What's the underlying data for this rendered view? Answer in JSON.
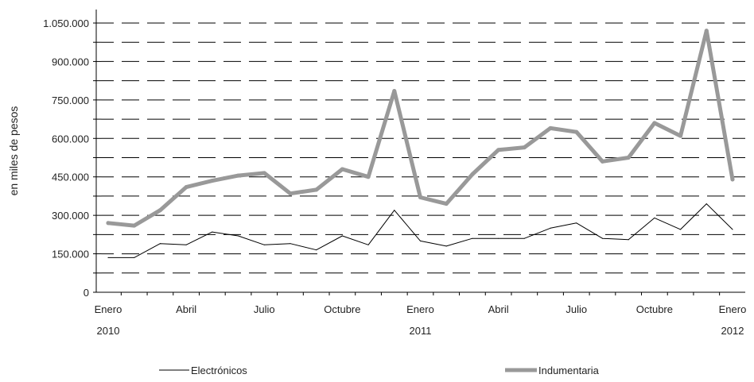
{
  "chart_data": {
    "type": "line",
    "ylabel": "en miles de pesos",
    "ylim": [
      0,
      1050000
    ],
    "yticks": [
      0,
      150000,
      300000,
      450000,
      600000,
      750000,
      900000,
      1050000
    ],
    "ytick_labels": [
      "0",
      "150.000",
      "300.000",
      "450.000",
      "600.000",
      "750.000",
      "900.000",
      "1.050.000"
    ],
    "grid": "horizontal dashed lines",
    "x_month_labels": [
      {
        "index": 0,
        "label": "Enero"
      },
      {
        "index": 3,
        "label": "Abril"
      },
      {
        "index": 6,
        "label": "Julio"
      },
      {
        "index": 9,
        "label": "Octubre"
      },
      {
        "index": 12,
        "label": "Enero"
      },
      {
        "index": 15,
        "label": "Abril"
      },
      {
        "index": 18,
        "label": "Julio"
      },
      {
        "index": 21,
        "label": "Octubre"
      },
      {
        "index": 24,
        "label": "Enero"
      }
    ],
    "x_year_labels": [
      {
        "index": 0,
        "label": "2010"
      },
      {
        "index": 12,
        "label": "2011"
      },
      {
        "index": 24,
        "label": "2012"
      }
    ],
    "legend_position": "bottom",
    "series": [
      {
        "name": "Electrónicos",
        "color": "#000000",
        "values": [
          135000,
          135000,
          190000,
          185000,
          235000,
          220000,
          185000,
          190000,
          165000,
          220000,
          185000,
          320000,
          200000,
          180000,
          210000,
          210000,
          210000,
          250000,
          270000,
          210000,
          205000,
          290000,
          245000,
          345000,
          245000
        ]
      },
      {
        "name": "Indumentaria",
        "color": "#999999",
        "values": [
          270000,
          260000,
          320000,
          410000,
          435000,
          455000,
          465000,
          385000,
          400000,
          480000,
          450000,
          785000,
          370000,
          345000,
          460000,
          555000,
          565000,
          640000,
          625000,
          510000,
          525000,
          660000,
          610000,
          1020000,
          440000
        ]
      }
    ]
  }
}
